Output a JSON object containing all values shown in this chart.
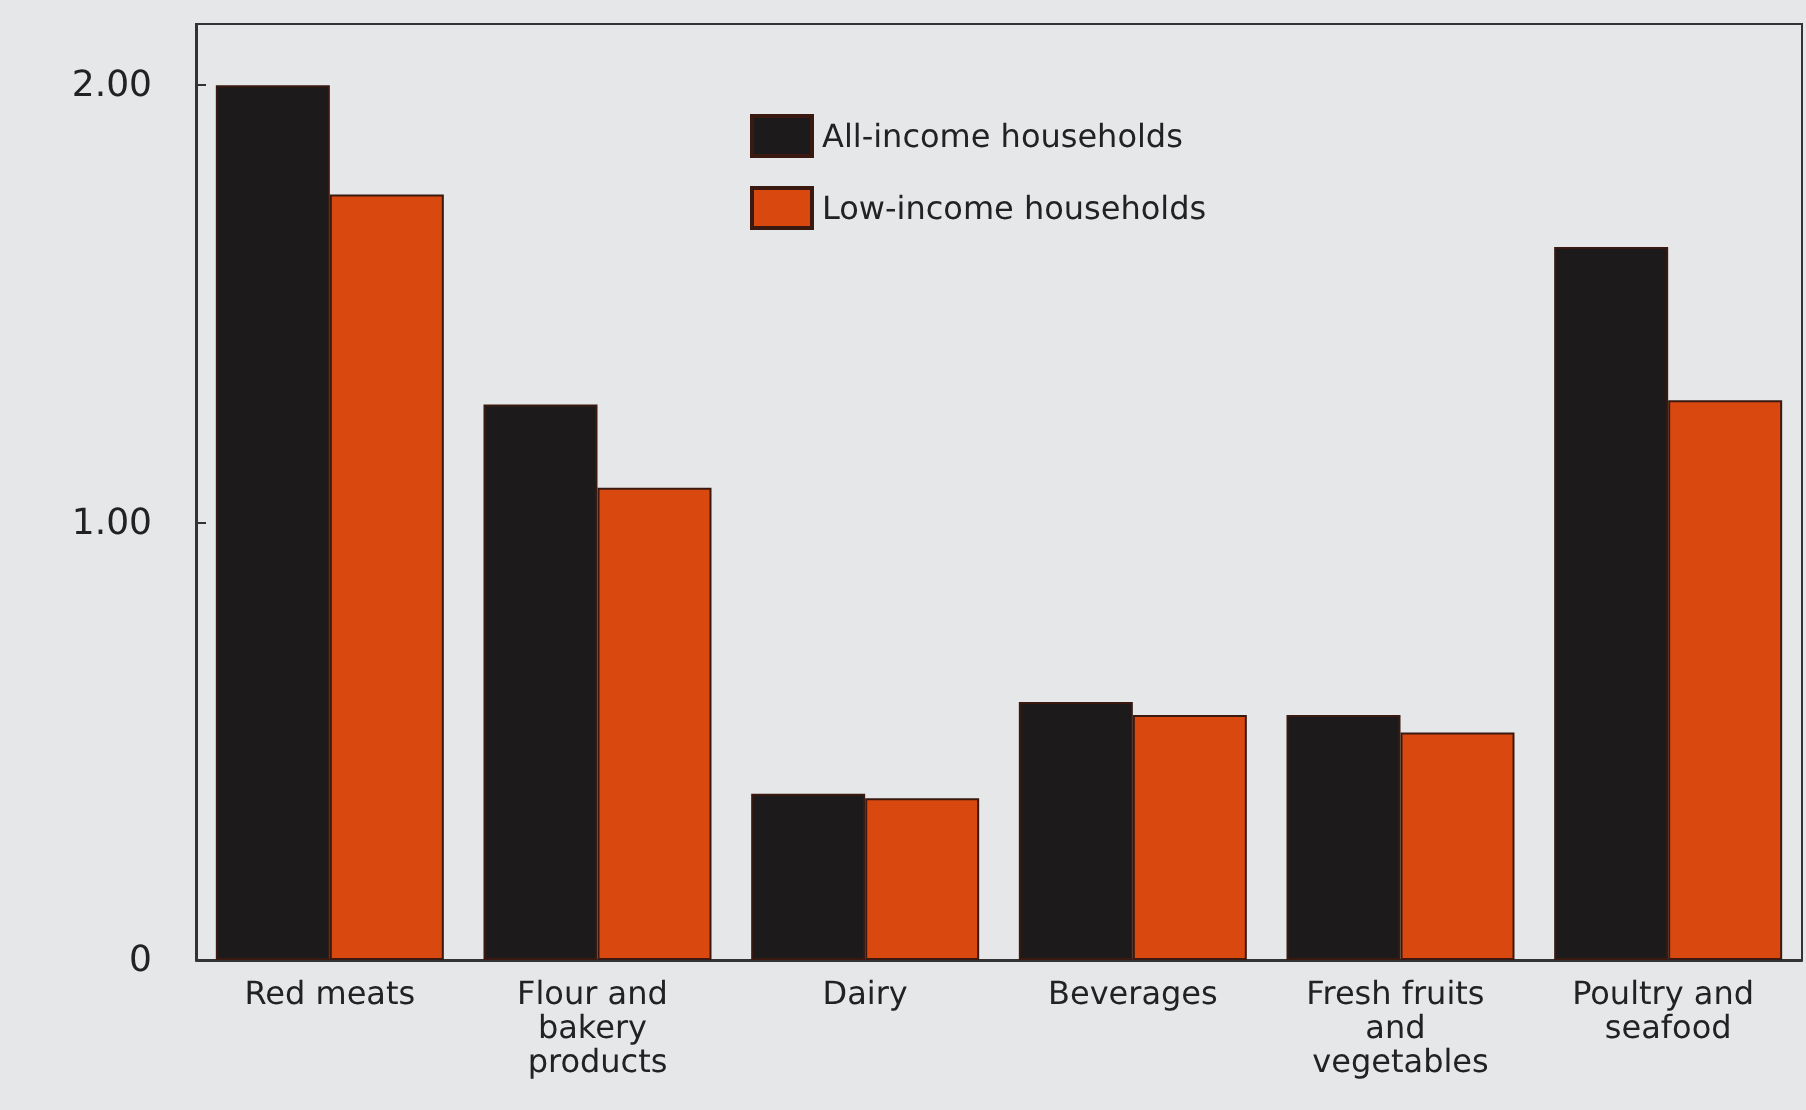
{
  "chart_data": {
    "type": "bar",
    "categories": [
      "Red meats",
      "Flour and bakery products",
      "Dairy",
      "Beverages",
      "Fresh fruits and vegetables",
      "Poultry and seafood"
    ],
    "series": [
      {
        "name": "All-income households",
        "color": "#1c1a1a",
        "values": [
          2.0,
          1.27,
          0.38,
          0.59,
          0.56,
          1.63
        ]
      },
      {
        "name": "Low-income households",
        "color": "#d9480f",
        "values": [
          1.75,
          1.08,
          0.37,
          0.56,
          0.52,
          1.28
        ]
      }
    ],
    "ylim": [
      0,
      2.14
    ],
    "yticks": [
      0,
      {
        "value": 1,
        "label": "1.00"
      },
      {
        "value": 2,
        "label": "2.00"
      }
    ],
    "grid": false,
    "legend": "top"
  }
}
